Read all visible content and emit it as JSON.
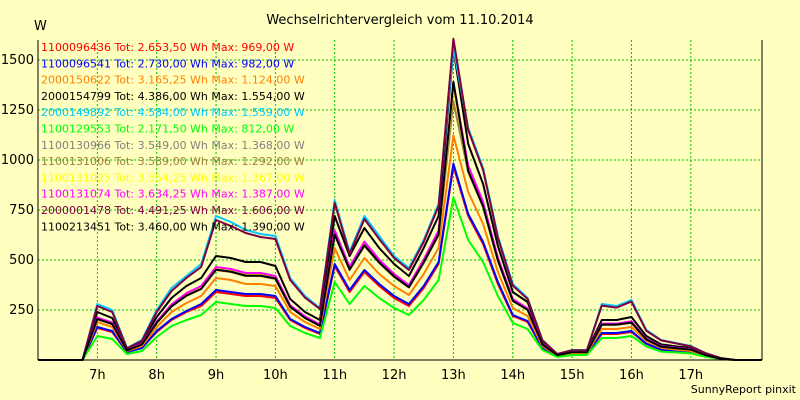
{
  "chart_data": {
    "type": "line",
    "title": "Wechselrichtervergleich vom 11.10.2014",
    "ylabel": "W",
    "xlabel": "",
    "ylim": [
      0,
      1600
    ],
    "xlim": [
      6.0,
      18.2
    ],
    "yticks": [
      250,
      500,
      750,
      1000,
      1250,
      1500
    ],
    "xticks": [
      {
        "value": 7,
        "label": "7h"
      },
      {
        "value": 8,
        "label": "8h"
      },
      {
        "value": 9,
        "label": "9h"
      },
      {
        "value": 10,
        "label": "10h"
      },
      {
        "value": 11,
        "label": "11h"
      },
      {
        "value": 12,
        "label": "12h"
      },
      {
        "value": 13,
        "label": "13h"
      },
      {
        "value": 14,
        "label": "14h"
      },
      {
        "value": 15,
        "label": "15h"
      },
      {
        "value": 16,
        "label": "16h"
      },
      {
        "value": 17,
        "label": "17h"
      }
    ],
    "grid": true,
    "legend_position": "top-left",
    "x": [
      6.0,
      6.25,
      6.5,
      6.75,
      7.0,
      7.25,
      7.5,
      7.75,
      8.0,
      8.25,
      8.5,
      8.75,
      9.0,
      9.25,
      9.5,
      9.75,
      10.0,
      10.25,
      10.5,
      10.75,
      11.0,
      11.25,
      11.5,
      11.75,
      12.0,
      12.25,
      12.5,
      12.75,
      13.0,
      13.25,
      13.5,
      13.75,
      14.0,
      14.25,
      14.5,
      14.75,
      15.0,
      15.25,
      15.5,
      15.75,
      16.0,
      16.25,
      16.5,
      16.75,
      17.0,
      17.25,
      17.5,
      17.75,
      18.0,
      18.2
    ],
    "series": [
      {
        "name": "1100096436",
        "legend": "1100096436 Tot: 2.653,50 Wh Max: 969,00 W",
        "color": "#ff0000",
        "values": [
          0,
          0,
          0,
          0,
          160,
          140,
          40,
          60,
          140,
          200,
          240,
          270,
          340,
          330,
          320,
          320,
          310,
          200,
          160,
          130,
          470,
          340,
          440,
          370,
          310,
          270,
          360,
          480,
          969,
          720,
          580,
          380,
          220,
          190,
          60,
          20,
          30,
          30,
          130,
          130,
          140,
          80,
          50,
          45,
          40,
          20,
          5,
          0,
          0,
          0
        ]
      },
      {
        "name": "1100096541",
        "legend": "1100096541 Tot: 2.730,00 Wh Max: 982,00 W",
        "color": "#0000ff",
        "values": [
          0,
          0,
          0,
          0,
          165,
          145,
          40,
          60,
          145,
          205,
          245,
          280,
          350,
          340,
          330,
          330,
          320,
          205,
          165,
          135,
          480,
          350,
          450,
          380,
          320,
          280,
          370,
          490,
          982,
          730,
          590,
          390,
          225,
          195,
          62,
          20,
          30,
          30,
          135,
          135,
          145,
          82,
          52,
          46,
          40,
          20,
          5,
          0,
          0,
          0
        ]
      },
      {
        "name": "2000150622",
        "legend": "2000150622 Tot: 3.165,25 Wh Max: 1.124,00 W",
        "color": "#ff8000",
        "values": [
          0,
          0,
          0,
          0,
          190,
          165,
          45,
          70,
          165,
          240,
          285,
          320,
          410,
          400,
          380,
          380,
          370,
          240,
          190,
          155,
          560,
          400,
          510,
          430,
          370,
          325,
          430,
          560,
          1124,
          840,
          680,
          440,
          260,
          220,
          70,
          22,
          35,
          35,
          155,
          155,
          165,
          95,
          60,
          52,
          45,
          22,
          6,
          0,
          0,
          0
        ]
      },
      {
        "name": "2000154799",
        "legend": "2000154799 Tot: 4.386,00 Wh Max: 1.554,00 W",
        "color": "#000000",
        "values": [
          0,
          0,
          0,
          0,
          240,
          210,
          55,
          90,
          215,
          310,
          370,
          410,
          520,
          510,
          490,
          490,
          470,
          305,
          240,
          200,
          720,
          520,
          660,
          560,
          480,
          420,
          560,
          720,
          1554,
          1080,
          880,
          570,
          340,
          290,
          90,
          28,
          45,
          45,
          200,
          200,
          215,
          120,
          78,
          68,
          60,
          28,
          8,
          0,
          0,
          0
        ]
      },
      {
        "name": "2000149892",
        "legend": "2000149892 Tot: 4.584,00 Wh Max: 1.559,00 W",
        "color": "#00c8ff",
        "values": [
          0,
          0,
          0,
          0,
          280,
          250,
          60,
          100,
          250,
          360,
          420,
          480,
          720,
          690,
          650,
          630,
          620,
          410,
          320,
          260,
          800,
          540,
          720,
          620,
          520,
          460,
          600,
          780,
          1559,
          1160,
          960,
          620,
          380,
          310,
          100,
          30,
          50,
          50,
          280,
          270,
          300,
          150,
          100,
          85,
          70,
          35,
          10,
          0,
          0,
          0
        ]
      },
      {
        "name": "1100129553",
        "legend": "1100129553 Tot: 2.171,50 Wh Max: 812,00 W",
        "color": "#00ff00",
        "values": [
          0,
          0,
          0,
          0,
          120,
          105,
          30,
          45,
          115,
          170,
          200,
          225,
          290,
          280,
          270,
          270,
          260,
          170,
          135,
          110,
          390,
          280,
          370,
          310,
          260,
          225,
          300,
          400,
          812,
          600,
          490,
          320,
          185,
          155,
          50,
          15,
          25,
          25,
          110,
          110,
          120,
          68,
          42,
          38,
          33,
          16,
          4,
          0,
          0,
          0
        ]
      },
      {
        "name": "1100130966",
        "legend": "1100130966 Tot: 3.549,00 Wh Max: 1.368,00 W",
        "color": "#808080",
        "values": [
          0,
          0,
          0,
          0,
          210,
          185,
          50,
          80,
          190,
          275,
          330,
          365,
          460,
          450,
          430,
          430,
          415,
          270,
          215,
          175,
          640,
          460,
          585,
          495,
          425,
          370,
          495,
          640,
          1368,
          960,
          780,
          505,
          300,
          255,
          80,
          25,
          40,
          40,
          180,
          180,
          190,
          105,
          68,
          60,
          53,
          25,
          7,
          0,
          0,
          0
        ]
      },
      {
        "name": "1100131006",
        "legend": "1100131006 Tot: 3.589,00 Wh Max: 1.292,00 W",
        "color": "#a08040",
        "values": [
          0,
          0,
          0,
          0,
          205,
          180,
          48,
          78,
          185,
          270,
          320,
          355,
          450,
          440,
          420,
          420,
          405,
          265,
          210,
          170,
          625,
          450,
          570,
          485,
          415,
          362,
          485,
          625,
          1292,
          940,
          765,
          495,
          295,
          250,
          78,
          24,
          39,
          39,
          176,
          176,
          186,
          103,
          66,
          58,
          52,
          24,
          7,
          0,
          0,
          0
        ]
      },
      {
        "name": "1100131025",
        "legend": "1100131025 Tot: 3.554,25 Wh Max: 1.367,00 W",
        "color": "#ffff00",
        "values": [
          0,
          0,
          0,
          0,
          208,
          183,
          49,
          79,
          188,
          272,
          326,
          360,
          455,
          445,
          425,
          425,
          410,
          268,
          212,
          172,
          632,
          455,
          578,
          490,
          420,
          366,
          490,
          632,
          1367,
          950,
          772,
          500,
          298,
          252,
          79,
          25,
          39,
          39,
          178,
          178,
          188,
          104,
          67,
          59,
          52,
          25,
          7,
          0,
          0,
          0
        ]
      },
      {
        "name": "1100131074",
        "legend": "1100131074 Tot: 3.634,25 Wh Max: 1.387,00 W",
        "color": "#ff00ff",
        "values": [
          0,
          0,
          0,
          0,
          212,
          187,
          50,
          81,
          192,
          278,
          334,
          370,
          465,
          455,
          435,
          435,
          420,
          274,
          218,
          178,
          648,
          466,
          592,
          502,
          430,
          375,
          502,
          648,
          1387,
          972,
          790,
          512,
          305,
          258,
          81,
          25,
          40,
          40,
          182,
          182,
          193,
          107,
          69,
          61,
          54,
          25,
          7,
          0,
          0,
          0
        ]
      },
      {
        "name": "2000001478",
        "legend": "2000001478 Tot: 4.491,25 Wh Max: 1.606,00 W",
        "color": "#800040",
        "values": [
          0,
          0,
          0,
          0,
          270,
          240,
          58,
          96,
          240,
          345,
          410,
          465,
          700,
          670,
          635,
          615,
          605,
          400,
          312,
          255,
          785,
          530,
          705,
          605,
          510,
          450,
          590,
          770,
          1606,
          1150,
          950,
          610,
          372,
          305,
          98,
          30,
          49,
          49,
          272,
          262,
          292,
          146,
          98,
          83,
          68,
          34,
          10,
          0,
          0,
          0
        ]
      },
      {
        "name": "1100213451",
        "legend": "1100213451 Tot: 3.460,00 Wh Max: 1.390,00 W",
        "color": "#000000",
        "values": [
          0,
          0,
          0,
          0,
          205,
          180,
          48,
          78,
          186,
          268,
          322,
          356,
          452,
          442,
          422,
          422,
          408,
          266,
          210,
          171,
          628,
          452,
          574,
          488,
          418,
          364,
          488,
          628,
          1390,
          945,
          768,
          498,
          296,
          251,
          78,
          24,
          39,
          39,
          177,
          177,
          187,
          103,
          66,
          59,
          52,
          24,
          7,
          0,
          0,
          0
        ]
      }
    ],
    "footer": "SunnyReport pinxit"
  }
}
